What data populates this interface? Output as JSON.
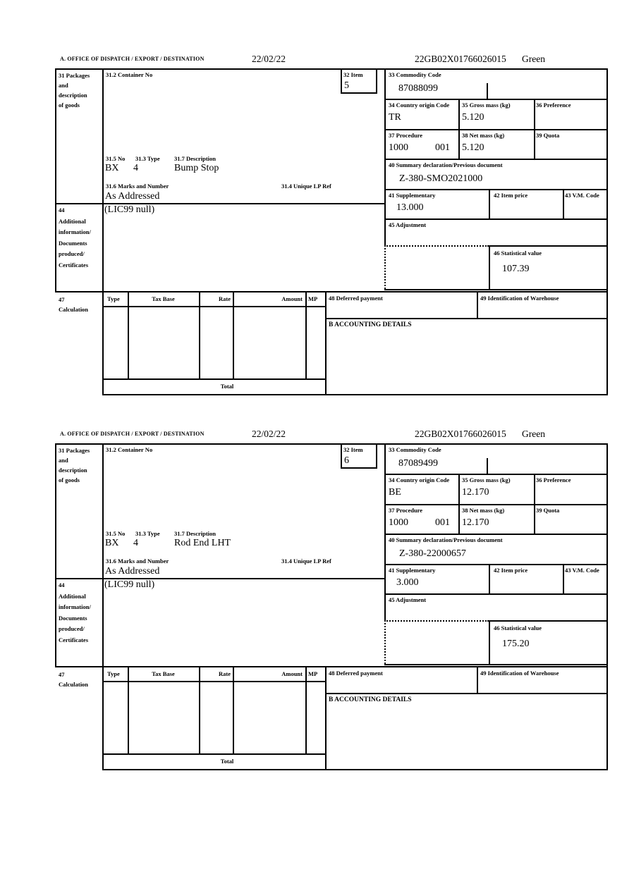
{
  "colors": {
    "ink": "#000000",
    "paper": "#ffffff"
  },
  "header": {
    "title": "A. OFFICE OF DISPATCH / EXPORT / DESTINATION",
    "date": "22/02/22",
    "reference": "22GB02X01766026015",
    "status": "Green"
  },
  "labels": {
    "box31": [
      "31 Packages",
      "and",
      "description",
      "of goods"
    ],
    "box31_2": "31.2 Container No",
    "box32": "32 Item",
    "box33": "33 Commodity Code",
    "box34": "34 Country origin Code",
    "box35": "35 Gross mass (kg)",
    "box36": "36 Preference",
    "box37": "37 Procedure",
    "box38": "38 Net mass (kg)",
    "box39": "39 Quota",
    "box31_5": "31.5 No",
    "box31_3": "31.3 Type",
    "box31_7": "31.7 Description",
    "box31_6": "31.6 Marks and Number",
    "box31_4": "31.4 Unique LP Ref",
    "box40": "40 Summary declaration/Previous document",
    "box41": "41 Supplementary",
    "box42": "42 Item price",
    "box43": "43 V.M. Code",
    "box44": [
      "44",
      "Additional",
      "information/",
      "Documents",
      "produced/",
      "Certificates"
    ],
    "box45": "45 Adjustment",
    "box46": "46 Statistical value",
    "box47": [
      "47",
      "Calculation"
    ],
    "calc_columns": [
      "Type",
      "Tax Base",
      "Rate",
      "Amount",
      "MP"
    ],
    "total": "Total",
    "box48": "48 Deferred payment",
    "box49": "49 Identification of Warehouse",
    "boxB": "B ACCOUNTING DETAILS"
  },
  "sections": [
    {
      "item_no": "5",
      "commodity_code": "87088099",
      "country_origin_code": "TR",
      "gross_mass": "5.120",
      "procedure": "1000",
      "procedure_additional": "001",
      "net_mass": "5.120",
      "previous_document": "Z-380-SMO2021000",
      "supplementary": "13.000",
      "statistical_value": "107.39",
      "package_no": "BX",
      "package_type": "4",
      "goods_description": "Bump Stop",
      "marks_and_number": "As Addressed",
      "additional_information": "(LIC99 null)"
    },
    {
      "item_no": "6",
      "commodity_code": "87089499",
      "country_origin_code": "BE",
      "gross_mass": "12.170",
      "procedure": "1000",
      "procedure_additional": "001",
      "net_mass": "12.170",
      "previous_document": "Z-380-22000657",
      "supplementary": "3.000",
      "statistical_value": "175.20",
      "package_no": "BX",
      "package_type": "4",
      "goods_description": "Rod End LHT",
      "marks_and_number": "As Addressed",
      "additional_information": "(LIC99 null)"
    }
  ]
}
